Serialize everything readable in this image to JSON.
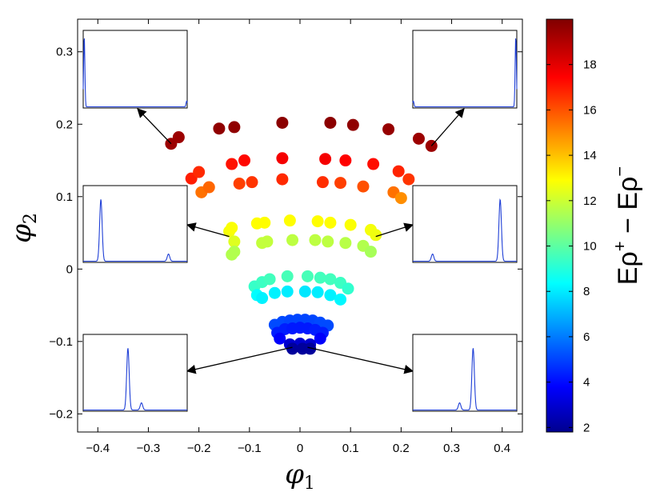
{
  "chart_data": {
    "type": "scatter",
    "xlabel": "φ1",
    "ylabel": "φ2",
    "xlim": [
      -0.44,
      0.44
    ],
    "ylim": [
      -0.225,
      0.345
    ],
    "xticks": [
      -0.4,
      -0.3,
      -0.2,
      -0.1,
      0,
      0.1,
      0.2,
      0.3,
      0.4
    ],
    "xtick_labels": [
      "−0.4",
      "−0.3",
      "−0.2",
      "−0.1",
      "0",
      "0.1",
      "0.2",
      "0.3",
      "0.4"
    ],
    "yticks": [
      -0.2,
      -0.1,
      0,
      0.1,
      0.2,
      0.3
    ],
    "ytick_labels": [
      "−0.2",
      "−0.1",
      "0",
      "0.1",
      "0.2",
      "0.3"
    ],
    "colorbar": {
      "label": "Eρ⁺ − Eρ⁻",
      "range": [
        1.8,
        20.0
      ],
      "ticks": [
        2,
        4,
        6,
        8,
        10,
        12,
        14,
        16,
        18
      ],
      "colormap": "jet"
    },
    "points": [
      {
        "x": -0.255,
        "y": 0.173,
        "c": 19.5
      },
      {
        "x": -0.24,
        "y": 0.182,
        "c": 19.5
      },
      {
        "x": -0.16,
        "y": 0.194,
        "c": 19.7
      },
      {
        "x": -0.13,
        "y": 0.196,
        "c": 19.7
      },
      {
        "x": -0.035,
        "y": 0.202,
        "c": 19.8
      },
      {
        "x": 0.06,
        "y": 0.202,
        "c": 19.8
      },
      {
        "x": 0.105,
        "y": 0.199,
        "c": 19.7
      },
      {
        "x": 0.175,
        "y": 0.193,
        "c": 19.6
      },
      {
        "x": 0.235,
        "y": 0.18,
        "c": 19.5
      },
      {
        "x": 0.26,
        "y": 0.17,
        "c": 19.5
      },
      {
        "x": -0.215,
        "y": 0.125,
        "c": 17.2
      },
      {
        "x": -0.2,
        "y": 0.134,
        "c": 17.0
      },
      {
        "x": -0.135,
        "y": 0.145,
        "c": 17.4
      },
      {
        "x": -0.11,
        "y": 0.15,
        "c": 17.6
      },
      {
        "x": -0.035,
        "y": 0.153,
        "c": 17.9
      },
      {
        "x": 0.05,
        "y": 0.152,
        "c": 17.9
      },
      {
        "x": 0.09,
        "y": 0.15,
        "c": 17.7
      },
      {
        "x": 0.145,
        "y": 0.145,
        "c": 17.5
      },
      {
        "x": 0.195,
        "y": 0.135,
        "c": 17.1
      },
      {
        "x": 0.215,
        "y": 0.124,
        "c": 16.8
      },
      {
        "x": -0.195,
        "y": 0.106,
        "c": 15.7
      },
      {
        "x": -0.18,
        "y": 0.113,
        "c": 15.9
      },
      {
        "x": -0.12,
        "y": 0.118,
        "c": 16.6
      },
      {
        "x": -0.095,
        "y": 0.12,
        "c": 16.8
      },
      {
        "x": -0.035,
        "y": 0.124,
        "c": 17.0
      },
      {
        "x": 0.045,
        "y": 0.12,
        "c": 16.9
      },
      {
        "x": 0.08,
        "y": 0.119,
        "c": 16.6
      },
      {
        "x": 0.125,
        "y": 0.114,
        "c": 16.3
      },
      {
        "x": 0.185,
        "y": 0.106,
        "c": 15.7
      },
      {
        "x": 0.2,
        "y": 0.098,
        "c": 15.2
      },
      {
        "x": -0.14,
        "y": 0.052,
        "c": 13.0
      },
      {
        "x": -0.135,
        "y": 0.057,
        "c": 13.1
      },
      {
        "x": -0.085,
        "y": 0.063,
        "c": 13.2
      },
      {
        "x": -0.07,
        "y": 0.064,
        "c": 13.2
      },
      {
        "x": -0.02,
        "y": 0.067,
        "c": 13.2
      },
      {
        "x": 0.035,
        "y": 0.066,
        "c": 13.2
      },
      {
        "x": 0.06,
        "y": 0.064,
        "c": 13.2
      },
      {
        "x": 0.1,
        "y": 0.061,
        "c": 13.1
      },
      {
        "x": 0.14,
        "y": 0.054,
        "c": 13.0
      },
      {
        "x": 0.15,
        "y": 0.047,
        "c": 12.9
      },
      {
        "x": -0.13,
        "y": 0.038,
        "c": 12.6
      },
      {
        "x": -0.13,
        "y": 0.024,
        "c": 11.8
      },
      {
        "x": -0.135,
        "y": 0.02,
        "c": 11.8
      },
      {
        "x": -0.075,
        "y": 0.036,
        "c": 12.1
      },
      {
        "x": -0.065,
        "y": 0.038,
        "c": 12.1
      },
      {
        "x": -0.015,
        "y": 0.04,
        "c": 12.0
      },
      {
        "x": 0.03,
        "y": 0.04,
        "c": 12.0
      },
      {
        "x": 0.055,
        "y": 0.038,
        "c": 12.0
      },
      {
        "x": 0.09,
        "y": 0.036,
        "c": 11.9
      },
      {
        "x": 0.125,
        "y": 0.032,
        "c": 11.8
      },
      {
        "x": 0.14,
        "y": 0.024,
        "c": 11.6
      },
      {
        "x": -0.09,
        "y": -0.024,
        "c": 9.6
      },
      {
        "x": -0.075,
        "y": -0.018,
        "c": 9.7
      },
      {
        "x": -0.06,
        "y": -0.014,
        "c": 9.8
      },
      {
        "x": -0.025,
        "y": -0.01,
        "c": 9.9
      },
      {
        "x": 0.015,
        "y": -0.01,
        "c": 9.9
      },
      {
        "x": 0.04,
        "y": -0.012,
        "c": 9.8
      },
      {
        "x": 0.06,
        "y": -0.014,
        "c": 9.8
      },
      {
        "x": 0.08,
        "y": -0.019,
        "c": 9.7
      },
      {
        "x": 0.095,
        "y": -0.027,
        "c": 9.5
      },
      {
        "x": -0.085,
        "y": -0.036,
        "c": 8.6
      },
      {
        "x": -0.075,
        "y": -0.04,
        "c": 8.4
      },
      {
        "x": -0.05,
        "y": -0.033,
        "c": 8.4
      },
      {
        "x": -0.025,
        "y": -0.031,
        "c": 8.3
      },
      {
        "x": 0.01,
        "y": -0.031,
        "c": 8.2
      },
      {
        "x": 0.035,
        "y": -0.032,
        "c": 8.3
      },
      {
        "x": 0.06,
        "y": -0.036,
        "c": 8.4
      },
      {
        "x": 0.08,
        "y": -0.042,
        "c": 8.5
      },
      {
        "x": -0.05,
        "y": -0.077,
        "c": 5.4
      },
      {
        "x": -0.035,
        "y": -0.073,
        "c": 5.4
      },
      {
        "x": -0.02,
        "y": -0.071,
        "c": 5.3
      },
      {
        "x": -0.005,
        "y": -0.07,
        "c": 5.3
      },
      {
        "x": 0.01,
        "y": -0.07,
        "c": 5.3
      },
      {
        "x": 0.025,
        "y": -0.071,
        "c": 5.3
      },
      {
        "x": 0.04,
        "y": -0.074,
        "c": 5.4
      },
      {
        "x": 0.055,
        "y": -0.078,
        "c": 5.4
      },
      {
        "x": -0.045,
        "y": -0.088,
        "c": 4.6
      },
      {
        "x": -0.03,
        "y": -0.083,
        "c": 4.6
      },
      {
        "x": -0.015,
        "y": -0.082,
        "c": 4.5
      },
      {
        "x": 0.0,
        "y": -0.081,
        "c": 4.5
      },
      {
        "x": 0.015,
        "y": -0.082,
        "c": 4.5
      },
      {
        "x": 0.03,
        "y": -0.084,
        "c": 4.6
      },
      {
        "x": 0.045,
        "y": -0.088,
        "c": 4.6
      },
      {
        "x": -0.04,
        "y": -0.096,
        "c": 4.0
      },
      {
        "x": 0.04,
        "y": -0.096,
        "c": 4.0
      },
      {
        "x": -0.02,
        "y": -0.104,
        "c": 3.2
      },
      {
        "x": 0.0,
        "y": -0.103,
        "c": 3.2
      },
      {
        "x": 0.02,
        "y": -0.104,
        "c": 3.2
      },
      {
        "x": -0.015,
        "y": -0.11,
        "c": 2.3
      },
      {
        "x": 0.005,
        "y": -0.11,
        "c": 2.3
      },
      {
        "x": 0.02,
        "y": -0.11,
        "c": 2.3
      }
    ],
    "insets": [
      {
        "id": "top-left",
        "peaks": [
          {
            "pos": 0.01,
            "height": 0.97,
            "width": 0.006
          },
          {
            "pos": 0.995,
            "height": 0.08,
            "width": 0.006
          }
        ],
        "arrow_to": {
          "x": -0.255,
          "y": 0.173
        }
      },
      {
        "id": "top-right",
        "peaks": [
          {
            "pos": 0.005,
            "height": 0.08,
            "width": 0.006
          },
          {
            "pos": 0.99,
            "height": 0.97,
            "width": 0.006
          }
        ],
        "arrow_to": {
          "x": 0.26,
          "y": 0.17
        }
      },
      {
        "id": "mid-left",
        "peaks": [
          {
            "pos": 0.17,
            "height": 0.86,
            "width": 0.012
          },
          {
            "pos": 0.82,
            "height": 0.1,
            "width": 0.012
          }
        ],
        "arrow_to": {
          "x": -0.14,
          "y": 0.045
        }
      },
      {
        "id": "mid-right",
        "peaks": [
          {
            "pos": 0.19,
            "height": 0.1,
            "width": 0.012
          },
          {
            "pos": 0.84,
            "height": 0.86,
            "width": 0.012
          }
        ],
        "arrow_to": {
          "x": 0.15,
          "y": 0.045
        }
      },
      {
        "id": "bottom-left",
        "peaks": [
          {
            "pos": 0.43,
            "height": 0.86,
            "width": 0.012
          },
          {
            "pos": 0.56,
            "height": 0.1,
            "width": 0.012
          }
        ],
        "arrow_to": {
          "x": -0.015,
          "y": -0.108
        }
      },
      {
        "id": "bottom-right",
        "peaks": [
          {
            "pos": 0.45,
            "height": 0.1,
            "width": 0.012
          },
          {
            "pos": 0.58,
            "height": 0.86,
            "width": 0.012
          }
        ],
        "arrow_to": {
          "x": 0.015,
          "y": -0.108
        }
      }
    ]
  }
}
